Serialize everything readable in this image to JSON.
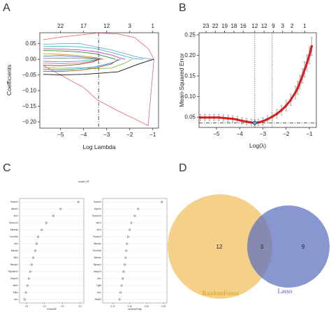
{
  "panels": {
    "A": "A",
    "B": "B",
    "C": "C",
    "D": "D"
  },
  "colors": {
    "orange": "#f0c060",
    "blue": "#5b6fbf",
    "red": "#d42020",
    "grey": "#9a9a9a"
  },
  "chart_data": [
    {
      "type": "line",
      "panel": "A",
      "xlabel": "Log Lambda",
      "ylabel": "Coefficients",
      "xlim": [
        -5.9,
        -0.75
      ],
      "ylim": [
        -0.22,
        0.085
      ],
      "x_ticks": [
        -5,
        -4,
        -3,
        -2,
        -1
      ],
      "y_ticks": [
        -0.2,
        -0.15,
        -0.1,
        -0.05,
        0.0,
        0.05
      ],
      "top_ticks": [
        "22",
        "17",
        "12",
        "3",
        "1"
      ],
      "top_tick_x": [
        -5,
        -4,
        -3,
        -2,
        -1
      ],
      "vline": -3.35,
      "series": [
        {
          "color": "#e8717a",
          "values": [
            [
              -5.75,
              0.063
            ],
            [
              -5.0,
              0.071
            ],
            [
              -4.0,
              0.079
            ],
            [
              -3.4,
              0.084
            ],
            [
              -2.5,
              0.081
            ],
            [
              -1.8,
              0.07
            ],
            [
              -1.2,
              0.035
            ],
            [
              -0.95,
              0.0
            ]
          ]
        },
        {
          "color": "#e8717a",
          "values": [
            [
              -5.75,
              -0.02
            ],
            [
              -5.0,
              -0.05
            ],
            [
              -4.0,
              -0.09
            ],
            [
              -3.4,
              -0.13
            ],
            [
              -2.5,
              -0.165
            ],
            [
              -1.8,
              -0.19
            ],
            [
              -1.2,
              -0.212
            ],
            [
              -0.95,
              0.0
            ]
          ]
        },
        {
          "color": "#111111",
          "values": [
            [
              -5.75,
              -0.048
            ],
            [
              -5.0,
              -0.05
            ],
            [
              -4.0,
              -0.048
            ],
            [
              -3.4,
              -0.045
            ],
            [
              -2.5,
              -0.04
            ],
            [
              -1.8,
              -0.02
            ],
            [
              -1.2,
              -0.005
            ],
            [
              -0.95,
              0.0
            ]
          ]
        },
        {
          "color": "#6fa8dc",
          "values": [
            [
              -5.75,
              0.048
            ],
            [
              -5.0,
              0.05
            ],
            [
              -4.2,
              0.051
            ],
            [
              -3.5,
              0.04
            ],
            [
              -2.8,
              0.03
            ],
            [
              -2.2,
              0.018
            ],
            [
              -1.6,
              0.006
            ],
            [
              -1.0,
              0.0
            ]
          ]
        },
        {
          "color": "#3fbfbf",
          "values": [
            [
              -5.75,
              0.041
            ],
            [
              -5.0,
              0.042
            ],
            [
              -4.2,
              0.04
            ],
            [
              -3.5,
              0.035
            ],
            [
              -2.8,
              0.022
            ],
            [
              -2.2,
              0.01
            ],
            [
              -1.8,
              0.002
            ],
            [
              -1.4,
              0.0
            ]
          ]
        },
        {
          "color": "#c040c0",
          "values": [
            [
              -5.75,
              0.034
            ],
            [
              -5.0,
              0.033
            ],
            [
              -4.2,
              0.03
            ],
            [
              -3.5,
              0.025
            ],
            [
              -2.8,
              0.014
            ],
            [
              -2.4,
              0.004
            ],
            [
              -2.2,
              0.0
            ]
          ]
        },
        {
          "color": "#2a8a2a",
          "values": [
            [
              -5.75,
              0.028
            ],
            [
              -5.0,
              0.027
            ],
            [
              -4.2,
              0.024
            ],
            [
              -3.5,
              0.018
            ],
            [
              -3.0,
              0.008
            ],
            [
              -2.6,
              0.0
            ]
          ]
        },
        {
          "color": "#d4a017",
          "values": [
            [
              -5.75,
              0.018
            ],
            [
              -5.0,
              0.016
            ],
            [
              -4.2,
              0.012
            ],
            [
              -3.5,
              0.006
            ],
            [
              -3.1,
              0.0
            ]
          ]
        },
        {
          "color": "#4169e1",
          "values": [
            [
              -5.75,
              0.01
            ],
            [
              -5.0,
              0.012
            ],
            [
              -4.2,
              0.008
            ],
            [
              -3.6,
              0.004
            ],
            [
              -3.2,
              0.0
            ]
          ]
        },
        {
          "color": "#888888",
          "values": [
            [
              -5.75,
              0.003
            ],
            [
              -5.0,
              0.004
            ],
            [
              -4.2,
              0.003
            ],
            [
              -3.6,
              0.001
            ],
            [
              -3.3,
              0.0
            ]
          ]
        },
        {
          "color": "#20b2aa",
          "values": [
            [
              -5.75,
              -0.006
            ],
            [
              -5.0,
              -0.008
            ],
            [
              -4.2,
              -0.006
            ],
            [
              -3.6,
              -0.003
            ],
            [
              -3.3,
              0.0
            ]
          ]
        },
        {
          "color": "#ff69b4",
          "values": [
            [
              -5.75,
              -0.012
            ],
            [
              -5.0,
              -0.014
            ],
            [
              -4.2,
              -0.012
            ],
            [
              -3.6,
              -0.006
            ],
            [
              -3.3,
              0.0
            ]
          ]
        },
        {
          "color": "#8b4513",
          "values": [
            [
              -5.75,
              -0.019
            ],
            [
              -5.0,
              -0.021
            ],
            [
              -4.2,
              -0.016
            ],
            [
              -3.6,
              -0.008
            ],
            [
              -3.3,
              0.0
            ]
          ]
        },
        {
          "color": "#7fbf3f",
          "values": [
            [
              -5.75,
              -0.026
            ],
            [
              -5.0,
              -0.029
            ],
            [
              -4.2,
              -0.026
            ],
            [
              -3.5,
              -0.03
            ],
            [
              -2.8,
              -0.028
            ],
            [
              -2.2,
              -0.012
            ],
            [
              -1.9,
              0.0
            ]
          ]
        },
        {
          "color": "#1e90ff",
          "values": [
            [
              -5.75,
              -0.032
            ],
            [
              -5.0,
              -0.034
            ],
            [
              -4.2,
              -0.03
            ],
            [
              -3.5,
              -0.024
            ],
            [
              -2.8,
              -0.012
            ],
            [
              -2.4,
              0.0
            ]
          ]
        },
        {
          "color": "#a0522d",
          "values": [
            [
              -5.75,
              -0.038
            ],
            [
              -5.0,
              -0.039
            ],
            [
              -4.2,
              -0.035
            ],
            [
              -3.5,
              -0.028
            ],
            [
              -2.8,
              -0.015
            ],
            [
              -2.5,
              0.0
            ]
          ]
        }
      ]
    },
    {
      "type": "line",
      "panel": "B",
      "xlabel": "Log(λ)",
      "ylabel": "Mean-Squared Error",
      "xlim": [
        -5.75,
        -0.7
      ],
      "ylim": [
        0.025,
        0.255
      ],
      "x_ticks": [
        -5,
        -4,
        -3,
        -2,
        -1
      ],
      "y_ticks": [
        0.05,
        0.1,
        0.15,
        0.2,
        0.25
      ],
      "top_ticks": [
        "23",
        "22",
        "19",
        "18",
        "16",
        "12",
        "12",
        "9",
        "3",
        "2",
        "1"
      ],
      "top_tick_x": [
        -5.45,
        -5.05,
        -4.65,
        -4.25,
        -3.85,
        -3.35,
        -2.95,
        -2.55,
        -2.15,
        -1.75,
        -1.2
      ],
      "vlines": [
        -3.35,
        -2.6
      ],
      "hline": 0.036,
      "min_point": {
        "x": -3.35,
        "y": 0.036
      },
      "series": [
        {
          "name": "",
          "x": [
            -5.7,
            -5.5,
            -5.3,
            -5.1,
            -4.9,
            -4.7,
            -4.5,
            -4.3,
            -4.1,
            -3.9,
            -3.7,
            -3.5,
            -3.35,
            -3.2,
            -3.0,
            -2.8,
            -2.6,
            -2.4,
            -2.2,
            -2.0,
            -1.8,
            -1.6,
            -1.5,
            -1.4,
            -1.3,
            -1.2,
            -1.1,
            -1.0,
            -0.9
          ],
          "y": [
            0.049,
            0.049,
            0.049,
            0.049,
            0.049,
            0.048,
            0.047,
            0.046,
            0.044,
            0.041,
            0.039,
            0.037,
            0.036,
            0.037,
            0.04,
            0.045,
            0.051,
            0.058,
            0.067,
            0.078,
            0.092,
            0.11,
            0.121,
            0.135,
            0.15,
            0.166,
            0.182,
            0.2,
            0.222
          ],
          "err": [
            0.008,
            0.008,
            0.008,
            0.008,
            0.008,
            0.008,
            0.008,
            0.008,
            0.008,
            0.008,
            0.008,
            0.008,
            0.008,
            0.008,
            0.009,
            0.009,
            0.01,
            0.011,
            0.012,
            0.013,
            0.014,
            0.016,
            0.016,
            0.017,
            0.018,
            0.019,
            0.02,
            0.021,
            0.022
          ]
        }
      ]
    },
    {
      "type": "scatter",
      "panel": "C",
      "title": "model_RF",
      "subplots": [
        {
          "xlabel": "%IncMSE",
          "x_ticks": [
            "3.5",
            "4.0",
            "4.5",
            "5.0"
          ],
          "xlim": [
            3.3,
            5.1
          ],
          "labels": [
            "Sanhd1",
            "Atp2a1",
            "Ifrd1",
            "Trpanc13",
            "Mtokotc",
            "Tmm33a",
            "Il2rc",
            "Marckc",
            "Wh1",
            "Slpeqc1",
            "Pkp4bb12",
            "Akap13",
            "Wnt2",
            "Wipe",
            "Lat1"
          ],
          "values": [
            4.95,
            4.45,
            4.25,
            4.05,
            3.92,
            3.82,
            3.78,
            3.74,
            3.68,
            3.64,
            3.6,
            3.56,
            3.52,
            3.48,
            3.44
          ]
        },
        {
          "xlabel": "IncNodePurity",
          "x_ticks": [
            "0.10",
            "0.15",
            "0.20",
            "0.25"
          ],
          "xlim": [
            0.07,
            0.26
          ],
          "labels": [
            "Sanhd1",
            "Atp2a1",
            "Trpanc13",
            "Wnt1",
            "Ifrd1",
            "Pkp4m2",
            "Mtokotc",
            "Tmm33a",
            "Marckc",
            "Slpeqc1",
            "Akap13",
            "Utrc",
            "Tgfbi",
            "Lat1",
            "Rea62"
          ],
          "values": [
            0.245,
            0.175,
            0.165,
            0.155,
            0.15,
            0.145,
            0.142,
            0.14,
            0.138,
            0.135,
            0.132,
            0.129,
            0.126,
            0.123,
            0.12
          ]
        }
      ]
    },
    {
      "type": "venn",
      "panel": "D",
      "sets": [
        {
          "name": "RandomForest",
          "only": "12",
          "color": "#f0c060"
        },
        {
          "name": "Lasso",
          "only": "9",
          "color": "#5b6fbf"
        }
      ],
      "intersection": "3"
    }
  ]
}
